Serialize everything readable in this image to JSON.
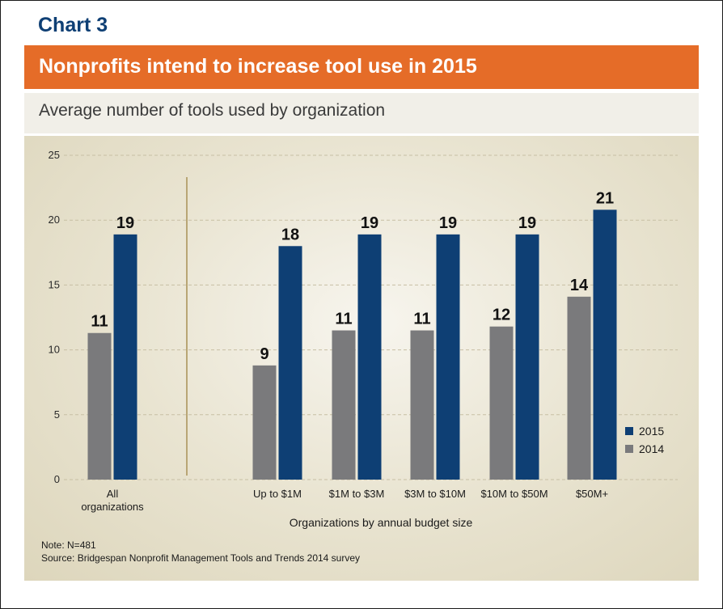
{
  "header": {
    "chart_label": "Chart 3",
    "title": "Nonprofits intend to increase tool use in 2015",
    "subtitle": "Average number of tools used by organization"
  },
  "chart_data": {
    "type": "bar",
    "title": "Nonprofits intend to increase tool use in 2015",
    "subtitle": "Average number of tools used by organization",
    "xlabel": "Organizations by annual budget size",
    "ylabel": "",
    "ylim": [
      0,
      25
    ],
    "yticks": [
      0,
      5,
      10,
      15,
      20,
      25
    ],
    "grid": true,
    "legend_position": "bottom-right",
    "categories": [
      [
        "All",
        "organizations"
      ],
      [
        "Up to $1M"
      ],
      [
        "$1M to $3M"
      ],
      [
        "$3M to $10M"
      ],
      [
        "$10M to $50M"
      ],
      [
        "$50M+"
      ]
    ],
    "series": [
      {
        "name": "2014",
        "color": "#7a7a7c",
        "values": [
          11.3,
          8.8,
          11.5,
          11.5,
          11.8,
          14.1
        ],
        "labels": [
          "11",
          "9",
          "11",
          "11",
          "12",
          "14"
        ]
      },
      {
        "name": "2015",
        "color": "#0e3f74",
        "values": [
          18.9,
          18.0,
          18.9,
          18.9,
          18.9,
          20.8
        ],
        "labels": [
          "19",
          "18",
          "19",
          "19",
          "19",
          "21"
        ]
      }
    ],
    "legend": [
      {
        "name": "2015",
        "color": "#0e3f74"
      },
      {
        "name": "2014",
        "color": "#7a7a7c"
      }
    ]
  },
  "footer": {
    "note": "Note: N=481",
    "source": "Source: Bridgespan Nonprofit Management Tools and Trends 2014 survey"
  }
}
